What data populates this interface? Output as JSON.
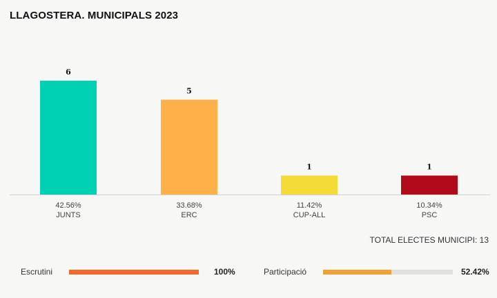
{
  "title": "LLAGOSTERA. MUNICIPALS 2023",
  "total_label": "TOTAL ELECTES MUNICIPI: 13",
  "meters": {
    "escrutini": {
      "label": "Escrutini",
      "value_text": "100%",
      "value": 100,
      "color": "#f2692e"
    },
    "participacio": {
      "label": "Participació",
      "value_text": "52.42%",
      "value": 52.42,
      "color": "#f0a23a"
    }
  },
  "chart_data": {
    "type": "bar",
    "categories": [
      "JUNTS",
      "ERC",
      "CUP-ALL",
      "PSC"
    ],
    "values": [
      6,
      5,
      1,
      1
    ],
    "data_labels": [
      "6",
      "5",
      "1",
      "1"
    ],
    "percentages": [
      "42.56%",
      "33.68%",
      "11.42%",
      "10.34%"
    ],
    "colors": [
      "#00d1b5",
      "#fdb148",
      "#f5db38",
      "#b10a1a"
    ],
    "ylim": [
      0,
      6
    ],
    "grid": false,
    "legend": "none"
  }
}
